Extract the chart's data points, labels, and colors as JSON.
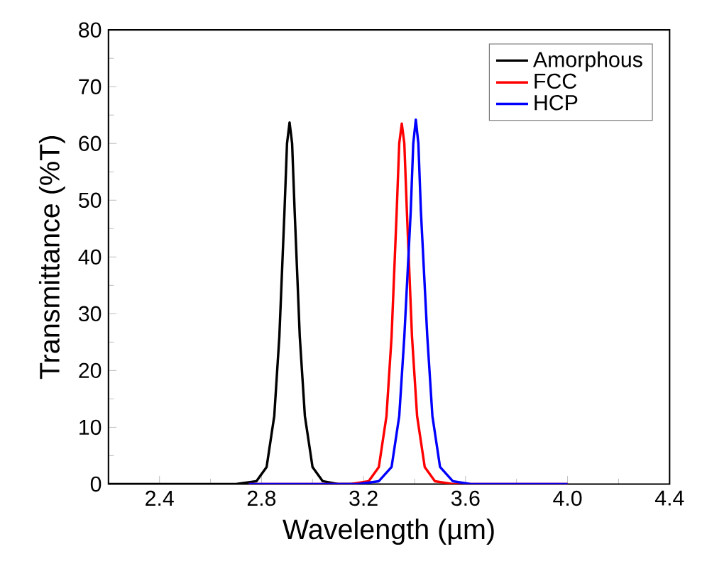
{
  "chart_data": {
    "type": "line",
    "xlabel": "Wavelength (µm)",
    "ylabel": "Transmittance (%T)",
    "xlim": [
      2.2,
      4.4
    ],
    "ylim": [
      0,
      80
    ],
    "xticks": [
      2.4,
      2.8,
      3.2,
      3.6,
      {
        "value": 4.0,
        "label": "4.0"
      },
      4.4
    ],
    "yticks": [
      0,
      10,
      20,
      30,
      40,
      50,
      60,
      70,
      80
    ],
    "grid": false,
    "legend": "top right",
    "marker": "none",
    "line_style": "solid",
    "series": [
      {
        "name": "Amorphous",
        "color": "#000000",
        "x": [
          2.2,
          2.7,
          2.78,
          2.82,
          2.85,
          2.87,
          2.89,
          2.9,
          2.91,
          2.92,
          2.93,
          2.95,
          2.97,
          3.0,
          3.04,
          3.1,
          3.2
        ],
        "values": [
          0,
          0,
          0.5,
          3,
          12,
          26,
          48,
          60,
          63.7,
          60,
          48,
          26,
          12,
          3,
          0.5,
          0,
          0
        ]
      },
      {
        "name": "FCC",
        "color": "#ff0000",
        "x": [
          2.75,
          3.15,
          3.22,
          3.26,
          3.29,
          3.31,
          3.33,
          3.34,
          3.35,
          3.36,
          3.37,
          3.39,
          3.41,
          3.44,
          3.48,
          3.55,
          4.0
        ],
        "values": [
          0,
          0,
          0.5,
          3,
          12,
          26,
          48,
          60,
          63.5,
          60,
          48,
          26,
          12,
          3,
          0.5,
          0,
          0
        ]
      },
      {
        "name": "HCP",
        "color": "#0000ff",
        "x": [
          2.75,
          3.18,
          3.26,
          3.31,
          3.34,
          3.36,
          3.385,
          3.395,
          3.405,
          3.415,
          3.425,
          3.45,
          3.47,
          3.5,
          3.55,
          3.62,
          4.0
        ],
        "values": [
          0,
          0,
          0.5,
          3,
          12,
          26,
          48,
          60,
          64.2,
          60,
          48,
          26,
          12,
          3,
          0.5,
          0,
          0
        ]
      }
    ]
  }
}
